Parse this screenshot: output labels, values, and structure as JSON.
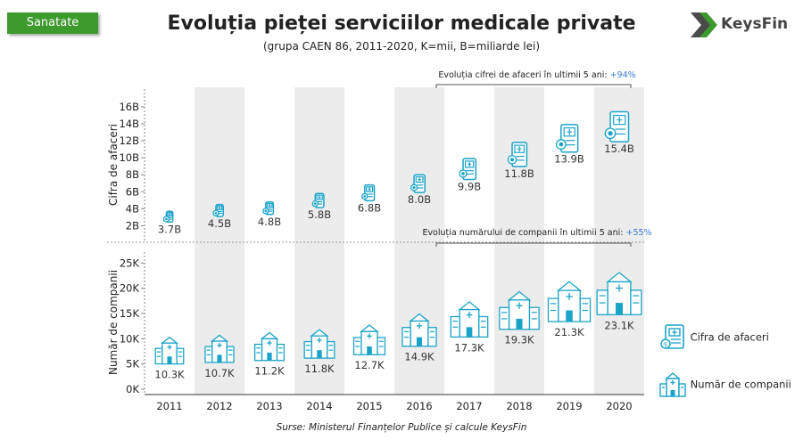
{
  "header": {
    "tag": "Sanatate",
    "title": "Evoluția pieței serviciilor medicale private",
    "subtitle": "(grupa CAEN 86, 2011-2020, K=mii, B=miliarde lei)",
    "logo_text": "KeysFin"
  },
  "footer": {
    "source": "Surse: Ministerul Finanțelor Publice și calcule KeysFin"
  },
  "legend": {
    "revenue": "Cifra de afaceri",
    "companies": "Număr de companii"
  },
  "colors": {
    "accent": "#3d9a2d",
    "icon": "#1aa3c9",
    "band": "#ececec",
    "highlight": "#3a7bd5"
  },
  "chart_data": [
    {
      "type": "bar",
      "ylabel": "Cifra de afaceri",
      "categories": [
        "2011",
        "2012",
        "2013",
        "2014",
        "2015",
        "2016",
        "2017",
        "2018",
        "2019",
        "2020"
      ],
      "values": [
        3.7,
        4.5,
        4.8,
        5.8,
        6.8,
        8.0,
        9.9,
        11.8,
        13.9,
        15.4
      ],
      "labels": [
        "3.7B",
        "4.5B",
        "4.8B",
        "5.8B",
        "6.8B",
        "8.0B",
        "9.9B",
        "11.8B",
        "13.9B",
        "15.4B"
      ],
      "yticks": [
        "2B",
        "4B",
        "6B",
        "8B",
        "10B",
        "12B",
        "14B",
        "16B"
      ],
      "ytick_values": [
        2,
        4,
        6,
        8,
        10,
        12,
        14,
        16
      ],
      "annotation": {
        "text": "Evoluția cifrei de afaceri în ultimii 5 ani: ",
        "value": "+94%"
      }
    },
    {
      "type": "bar",
      "ylabel": "Număr de companii",
      "categories": [
        "2011",
        "2012",
        "2013",
        "2014",
        "2015",
        "2016",
        "2017",
        "2018",
        "2019",
        "2020"
      ],
      "values": [
        10.3,
        10.7,
        11.2,
        11.8,
        12.7,
        14.9,
        17.3,
        19.3,
        21.3,
        23.1
      ],
      "labels": [
        "10.3K",
        "10.7K",
        "11.2K",
        "11.8K",
        "12.7K",
        "14.9K",
        "17.3K",
        "19.3K",
        "21.3K",
        "23.1K"
      ],
      "yticks": [
        "0K",
        "5K",
        "10K",
        "15K",
        "20K",
        "25K"
      ],
      "ytick_values": [
        0,
        5,
        10,
        15,
        20,
        25
      ],
      "annotation": {
        "text": "Evoluția numărului de companii în ultimii 5 ani: ",
        "value": "+55%"
      }
    }
  ]
}
